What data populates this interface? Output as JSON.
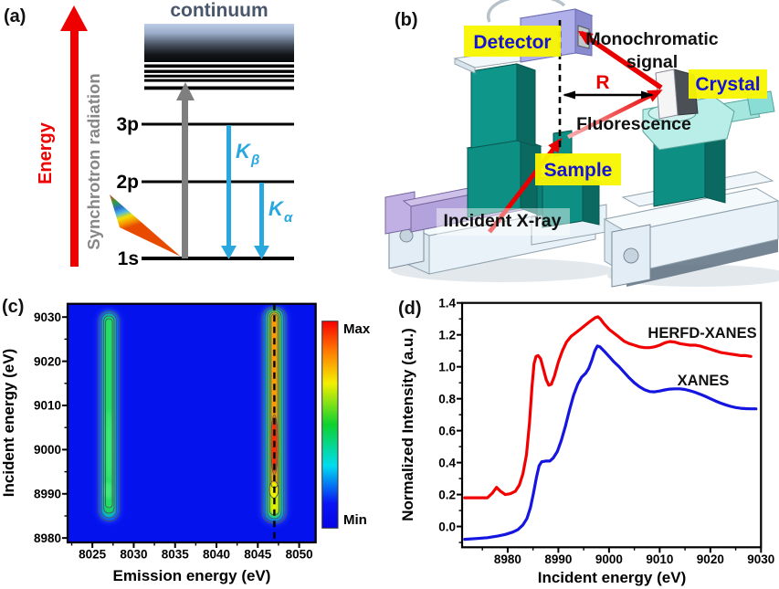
{
  "figure": {
    "panels": {
      "a": {
        "tag": "(a)",
        "continuum_label": "continuum",
        "energy_axis_label": "Energy",
        "synchrotron_label": "Synchrotron radiation",
        "levels": [
          "3p",
          "2p",
          "1s"
        ],
        "kbeta_main": "K",
        "kbeta_sub": "β",
        "kalpha_main": "K",
        "kalpha_sub": "α"
      },
      "b": {
        "tag": "(b)",
        "labels": {
          "detector": "Detector",
          "monochromatic_line1": "Monochromatic",
          "monochromatic_line2": "signal",
          "crystal": "Crystal",
          "radius": "R",
          "fluorescence": "Fluorescence",
          "sample": "Sample",
          "incident": "Incident X-ray"
        }
      },
      "c": {
        "tag": "(c)"
      },
      "d": {
        "tag": "(d)"
      }
    }
  },
  "colors": {
    "arrow_red": "#E80000",
    "energy_red": "#EE0000",
    "kline_cyan": "#29A8E0",
    "continuum_text": "#4A566B",
    "gray_text": "#878787",
    "label_yellow": "#F9F600",
    "label_blue": "#1414D2",
    "machine_teal": "#0E8F84",
    "machine_lavender": "#AFAFEA",
    "machine_cyan": "#B9EDE7",
    "plot_background_blue": "#0412EE",
    "curve_red": "#F20000",
    "curve_blue": "#1515E0"
  },
  "chart_data": [
    {
      "panel": "c",
      "type": "heatmap",
      "xlabel": "Emission energy (eV)",
      "ylabel": "Incident energy (eV)",
      "xlim": [
        8022,
        8052
      ],
      "ylim": [
        8979,
        9033
      ],
      "xticks": [
        "8025",
        "8030",
        "8035",
        "8040",
        "8045",
        "8050"
      ],
      "yticks": [
        "8980",
        "8990",
        "9000",
        "9010",
        "9020",
        "9030"
      ],
      "colorbar": {
        "max_label": "Max",
        "min_label": "Min"
      },
      "features": [
        {
          "name": "Kalpha2 emission stripe",
          "emission_center_eV": 8027,
          "incident_range_eV": [
            8988,
            9033
          ],
          "peak_incident_eV": [
            8990,
            9005
          ],
          "relative_intensity": "medium-green"
        },
        {
          "name": "Kalpha1 emission stripe",
          "emission_center_eV": 8047,
          "incident_range_eV": [
            8988,
            9033
          ],
          "peak_incident_eV": [
            8995,
            9007
          ],
          "relative_intensity": "maximum-red"
        }
      ],
      "dashed_line_emission_eV": 8047
    },
    {
      "panel": "d",
      "type": "line",
      "xlabel": "Incident energy (eV)",
      "ylabel": "Normalized Intensity (a.u.)",
      "xlim": [
        8971,
        9030
      ],
      "ylim": [
        -0.13,
        1.4
      ],
      "xticks": [
        "8980",
        "8990",
        "9000",
        "9010",
        "9020",
        "9030"
      ],
      "yticks": [
        "0.0",
        "0.2",
        "0.4",
        "0.6",
        "0.8",
        "1.0",
        "1.2",
        "1.4"
      ],
      "series": [
        {
          "name": "HERFD-XANES",
          "color": "#F20000",
          "points": [
            [
              8971.5,
              0.18
            ],
            [
              8974,
              0.18
            ],
            [
              8976,
              0.18
            ],
            [
              8977,
              0.21
            ],
            [
              8977.8,
              0.245
            ],
            [
              8978.6,
              0.22
            ],
            [
              8979.5,
              0.2
            ],
            [
              8980.5,
              0.205
            ],
            [
              8981.5,
              0.22
            ],
            [
              8982.3,
              0.26
            ],
            [
              8983,
              0.33
            ],
            [
              8983.7,
              0.45
            ],
            [
              8984.3,
              0.65
            ],
            [
              8984.8,
              0.88
            ],
            [
              8985.2,
              1.02
            ],
            [
              8985.6,
              1.065
            ],
            [
              8986,
              1.07
            ],
            [
              8986.5,
              1.05
            ],
            [
              8987,
              0.99
            ],
            [
              8987.6,
              0.92
            ],
            [
              8988.1,
              0.885
            ],
            [
              8988.6,
              0.89
            ],
            [
              8989.2,
              0.94
            ],
            [
              8990,
              1.03
            ],
            [
              8990.8,
              1.1
            ],
            [
              8991.6,
              1.155
            ],
            [
              8992.5,
              1.19
            ],
            [
              8993.5,
              1.215
            ],
            [
              8994.5,
              1.24
            ],
            [
              8995.5,
              1.265
            ],
            [
              8996.5,
              1.29
            ],
            [
              8997.3,
              1.308
            ],
            [
              8997.8,
              1.313
            ],
            [
              8998.3,
              1.3
            ],
            [
              8999,
              1.27
            ],
            [
              9000,
              1.235
            ],
            [
              9001,
              1.21
            ],
            [
              9002,
              1.185
            ],
            [
              9003,
              1.16
            ],
            [
              9004,
              1.145
            ],
            [
              9005,
              1.135
            ],
            [
              9006,
              1.125
            ],
            [
              9007,
              1.12
            ],
            [
              9008,
              1.12
            ],
            [
              9009,
              1.125
            ],
            [
              9010,
              1.135
            ],
            [
              9011,
              1.15
            ],
            [
              9012,
              1.158
            ],
            [
              9013,
              1.155
            ],
            [
              9014,
              1.145
            ],
            [
              9015,
              1.14
            ],
            [
              9016,
              1.135
            ],
            [
              9017,
              1.135
            ],
            [
              9018,
              1.13
            ],
            [
              9019,
              1.12
            ],
            [
              9020,
              1.11
            ],
            [
              9021,
              1.1
            ],
            [
              9022,
              1.09
            ],
            [
              9023,
              1.085
            ],
            [
              9024,
              1.08
            ],
            [
              9025,
              1.075
            ],
            [
              9026,
              1.07
            ],
            [
              9027,
              1.07
            ],
            [
              9028,
              1.065
            ]
          ]
        },
        {
          "name": "XANES",
          "color": "#1515E0",
          "points": [
            [
              8971.5,
              -0.08
            ],
            [
              8974,
              -0.075
            ],
            [
              8976,
              -0.07
            ],
            [
              8978,
              -0.06
            ],
            [
              8979.5,
              -0.05
            ],
            [
              8981,
              -0.035
            ],
            [
              8982,
              -0.02
            ],
            [
              8983,
              0.01
            ],
            [
              8983.8,
              0.05
            ],
            [
              8984.5,
              0.12
            ],
            [
              8985.1,
              0.21
            ],
            [
              8985.7,
              0.31
            ],
            [
              8986.2,
              0.38
            ],
            [
              8986.7,
              0.405
            ],
            [
              8987.5,
              0.41
            ],
            [
              8988.3,
              0.41
            ],
            [
              8989,
              0.43
            ],
            [
              8989.8,
              0.47
            ],
            [
              8990.6,
              0.54
            ],
            [
              8991.4,
              0.63
            ],
            [
              8992.2,
              0.73
            ],
            [
              8993,
              0.82
            ],
            [
              8993.8,
              0.89
            ],
            [
              8994.6,
              0.935
            ],
            [
              8995.4,
              0.96
            ],
            [
              8996,
              0.99
            ],
            [
              8996.6,
              1.04
            ],
            [
              8997.2,
              1.1
            ],
            [
              8997.7,
              1.13
            ],
            [
              8998.2,
              1.125
            ],
            [
              8999,
              1.1
            ],
            [
              9000,
              1.065
            ],
            [
              9001,
              1.03
            ],
            [
              9002,
              1.0
            ],
            [
              9003,
              0.965
            ],
            [
              9004,
              0.93
            ],
            [
              9005,
              0.9
            ],
            [
              9006,
              0.875
            ],
            [
              9007,
              0.856
            ],
            [
              9008,
              0.845
            ],
            [
              9009,
              0.843
            ],
            [
              9010,
              0.848
            ],
            [
              9011,
              0.855
            ],
            [
              9012,
              0.86
            ],
            [
              9013,
              0.862
            ],
            [
              9014,
              0.862
            ],
            [
              9015,
              0.858
            ],
            [
              9016,
              0.85
            ],
            [
              9017,
              0.84
            ],
            [
              9018,
              0.828
            ],
            [
              9019,
              0.815
            ],
            [
              9020,
              0.8
            ],
            [
              9021,
              0.786
            ],
            [
              9022,
              0.773
            ],
            [
              9023,
              0.762
            ],
            [
              9024,
              0.752
            ],
            [
              9025,
              0.745
            ],
            [
              9026,
              0.74
            ],
            [
              9027,
              0.738
            ],
            [
              9028,
              0.737
            ],
            [
              9029,
              0.737
            ]
          ]
        }
      ]
    }
  ]
}
